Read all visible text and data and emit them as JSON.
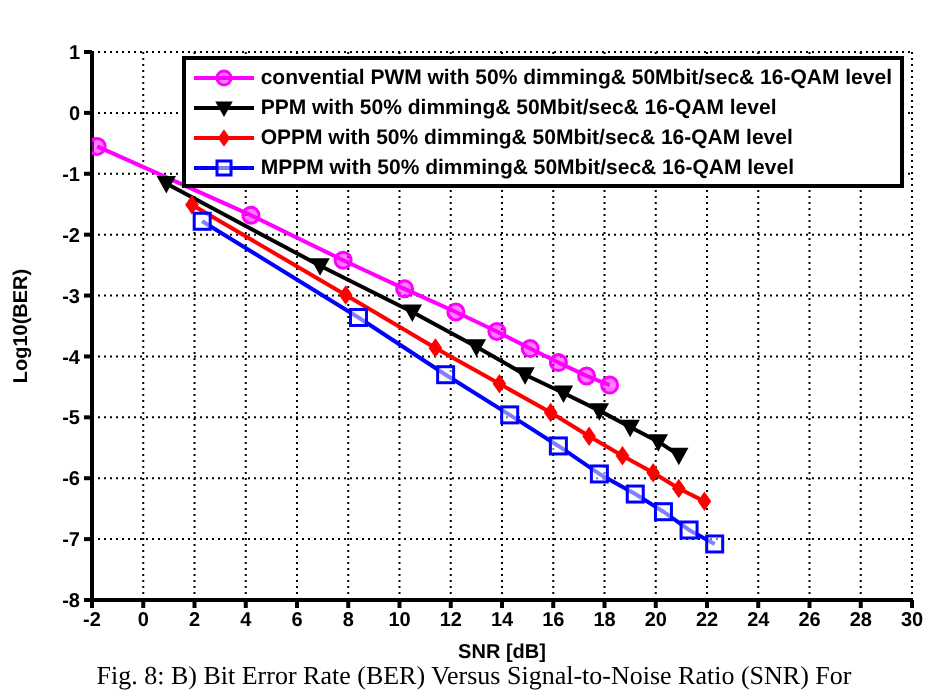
{
  "chart_data": {
    "type": "line",
    "xlabel": "SNR [dB]",
    "ylabel": "Log10(BER)",
    "xlim": [
      -2,
      30
    ],
    "xticks": [
      -2,
      0,
      2,
      4,
      6,
      8,
      10,
      12,
      14,
      16,
      18,
      20,
      22,
      24,
      26,
      28,
      30
    ],
    "ylim": [
      -8,
      1
    ],
    "yticks": [
      -8,
      -7,
      -6,
      -5,
      -4,
      -3,
      -2,
      -1,
      0,
      1
    ],
    "grid": true,
    "legend": "top right",
    "line_style": "solid",
    "annotations": [
      "Fig. 8: B) Bit Error Rate (BER) Versus Signal-to-Noise Ratio (SNR) For"
    ],
    "series": [
      {
        "name": "convential PWM with 50% dimming& 50Mbit/sec& 16-QAM level",
        "color": "#ff00ff",
        "marker": "circle",
        "x": [
          -1.8,
          4.2,
          7.8,
          10.2,
          12.2,
          13.8,
          15.1,
          16.2,
          17.3,
          18.2
        ],
        "values": [
          -0.55,
          -1.68,
          -2.42,
          -2.89,
          -3.27,
          -3.59,
          -3.87,
          -4.1,
          -4.32,
          -4.47
        ]
      },
      {
        "name": "PPM with 50% dimming& 50Mbit/sec& 16-QAM level",
        "color": "#000000",
        "marker": "triangle",
        "x": [
          0.9,
          6.9,
          10.5,
          13.0,
          14.9,
          16.4,
          17.8,
          19.0,
          20.1,
          20.9
        ],
        "values": [
          -1.16,
          -2.51,
          -3.27,
          -3.84,
          -4.3,
          -4.6,
          -4.89,
          -5.16,
          -5.4,
          -5.62
        ]
      },
      {
        "name": "OPPM with 50% dimming& 50Mbit/sec& 16-QAM level",
        "color": "#ff0000",
        "marker": "diamond",
        "x": [
          1.9,
          7.9,
          11.4,
          13.9,
          15.9,
          17.4,
          18.7,
          19.9,
          20.9,
          21.9
        ],
        "values": [
          -1.51,
          -2.99,
          -3.86,
          -4.45,
          -4.92,
          -5.31,
          -5.63,
          -5.91,
          -6.17,
          -6.38
        ]
      },
      {
        "name": "MPPM with 50% dimming& 50Mbit/sec& 16-QAM level",
        "color": "#0000ff",
        "marker": "square",
        "x": [
          2.3,
          8.4,
          11.8,
          14.3,
          16.2,
          17.8,
          19.2,
          20.3,
          21.3,
          22.3
        ],
        "values": [
          -1.78,
          -3.36,
          -4.3,
          -4.96,
          -5.47,
          -5.93,
          -6.26,
          -6.55,
          -6.85,
          -7.08
        ]
      }
    ]
  }
}
